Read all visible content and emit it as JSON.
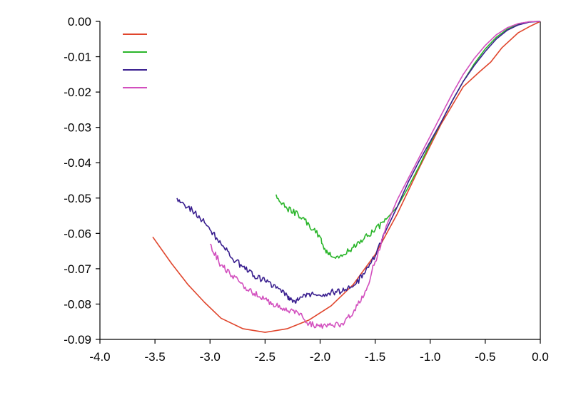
{
  "chart_data": {
    "type": "line",
    "title": "",
    "xlabel": "",
    "ylabel": "",
    "xlim": [
      -4.0,
      0.0
    ],
    "ylim": [
      -0.09,
      0.0
    ],
    "x_tick_labels": [
      "-4.0",
      "-3.5",
      "-3.0",
      "-2.5",
      "-2.0",
      "-1.5",
      "-1.0",
      "-0.5",
      "0.0"
    ],
    "x_tick_values": [
      -4.0,
      -3.5,
      -3.0,
      -2.5,
      -2.0,
      -1.5,
      -1.0,
      -0.5,
      0.0
    ],
    "y_tick_labels": [
      "0.00",
      "-0.01",
      "-0.02",
      "-0.03",
      "-0.04",
      "-0.05",
      "-0.06",
      "-0.07",
      "-0.08",
      "-0.09"
    ],
    "y_tick_values": [
      0.0,
      -0.01,
      -0.02,
      -0.03,
      -0.04,
      -0.05,
      -0.06,
      -0.07,
      -0.08,
      -0.09
    ],
    "grid": false,
    "legend_position": "top-left",
    "series": [
      {
        "color": "#e0452c",
        "x": [
          -3.52,
          -3.35,
          -3.2,
          -3.05,
          -2.9,
          -2.7,
          -2.5,
          -2.3,
          -2.1,
          -1.9,
          -1.7,
          -1.5,
          -1.3,
          -1.1,
          -0.9,
          -0.7,
          -0.55,
          -0.45,
          -0.35,
          -0.2,
          -0.1,
          0.0
        ],
        "y": [
          -0.061,
          -0.0685,
          -0.0745,
          -0.0795,
          -0.084,
          -0.087,
          -0.088,
          -0.087,
          -0.0845,
          -0.0805,
          -0.0745,
          -0.066,
          -0.0545,
          -0.0415,
          -0.029,
          -0.0185,
          -0.0142,
          -0.0115,
          -0.0075,
          -0.0032,
          -0.0015,
          0.0
        ]
      },
      {
        "color": "#2ab52a",
        "x": [
          -2.4,
          -2.3,
          -2.2,
          -2.1,
          -2.0,
          -1.95,
          -1.9,
          -1.8,
          -1.7,
          -1.6,
          -1.5,
          -1.4,
          -1.3,
          -1.2,
          -1.1,
          -1.0,
          -0.9,
          -0.8,
          -0.7,
          -0.6,
          -0.5,
          -0.4,
          -0.3,
          -0.2,
          -0.1,
          0.0
        ],
        "y": [
          -0.049,
          -0.053,
          -0.0545,
          -0.0575,
          -0.061,
          -0.065,
          -0.0665,
          -0.0665,
          -0.064,
          -0.0615,
          -0.059,
          -0.056,
          -0.0525,
          -0.047,
          -0.041,
          -0.0345,
          -0.0285,
          -0.0225,
          -0.017,
          -0.012,
          -0.0078,
          -0.0045,
          -0.0022,
          -0.0008,
          -0.0001,
          0.0
        ]
      },
      {
        "color": "#3a1f8f",
        "x": [
          -3.3,
          -3.2,
          -3.1,
          -3.0,
          -2.9,
          -2.8,
          -2.7,
          -2.6,
          -2.5,
          -2.4,
          -2.3,
          -2.25,
          -2.2,
          -2.1,
          -2.0,
          -1.9,
          -1.8,
          -1.7,
          -1.6,
          -1.5,
          -1.4,
          -1.3,
          -1.2,
          -1.1,
          -1.0,
          -0.9,
          -0.8,
          -0.7,
          -0.6,
          -0.5,
          -0.4,
          -0.3,
          -0.2,
          -0.1,
          0.0
        ],
        "y": [
          -0.05,
          -0.0525,
          -0.055,
          -0.059,
          -0.063,
          -0.067,
          -0.0695,
          -0.072,
          -0.0735,
          -0.0755,
          -0.0775,
          -0.0795,
          -0.079,
          -0.077,
          -0.0775,
          -0.0765,
          -0.0765,
          -0.075,
          -0.0715,
          -0.0665,
          -0.059,
          -0.0525,
          -0.0455,
          -0.0395,
          -0.034,
          -0.0285,
          -0.0225,
          -0.017,
          -0.0125,
          -0.0085,
          -0.005,
          -0.0025,
          -0.001,
          -0.0002,
          0.0
        ]
      },
      {
        "color": "#d24fbe",
        "x": [
          -3.0,
          -2.9,
          -2.8,
          -2.7,
          -2.6,
          -2.5,
          -2.4,
          -2.3,
          -2.2,
          -2.1,
          -2.0,
          -1.9,
          -1.8,
          -1.7,
          -1.6,
          -1.5,
          -1.4,
          -1.3,
          -1.2,
          -1.1,
          -1.0,
          -0.9,
          -0.8,
          -0.7,
          -0.6,
          -0.5,
          -0.4,
          -0.3,
          -0.2,
          -0.1,
          0.0
        ],
        "y": [
          -0.063,
          -0.069,
          -0.072,
          -0.0745,
          -0.077,
          -0.0785,
          -0.0805,
          -0.082,
          -0.0825,
          -0.0855,
          -0.0865,
          -0.086,
          -0.0855,
          -0.0825,
          -0.0775,
          -0.068,
          -0.058,
          -0.0505,
          -0.0445,
          -0.0385,
          -0.0325,
          -0.0265,
          -0.0205,
          -0.015,
          -0.0105,
          -0.0068,
          -0.0038,
          -0.0018,
          -0.0006,
          -0.0001,
          0.0
        ]
      }
    ]
  }
}
